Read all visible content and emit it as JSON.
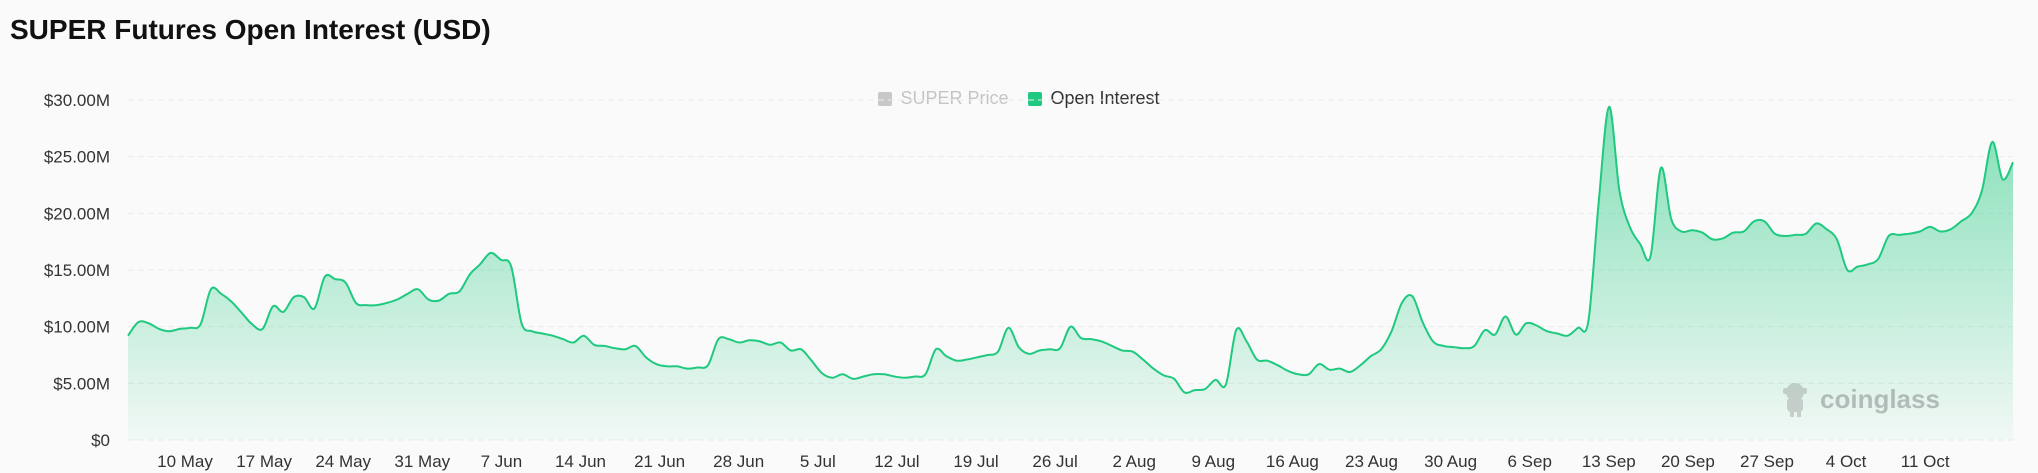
{
  "chart_data": {
    "type": "area",
    "title": "SUPER Futures Open Interest (USD)",
    "xlabel": "",
    "ylabel": "",
    "ylim": [
      0,
      30000000
    ],
    "y_ticks": [
      {
        "value": 0,
        "label": "$0"
      },
      {
        "value": 5000000,
        "label": "$5.00M"
      },
      {
        "value": 10000000,
        "label": "$10.00M"
      },
      {
        "value": 15000000,
        "label": "$15.00M"
      },
      {
        "value": 20000000,
        "label": "$20.00M"
      },
      {
        "value": 25000000,
        "label": "$25.00M"
      },
      {
        "value": 30000000,
        "label": "$30.00M"
      }
    ],
    "x_ticks": [
      "10 May",
      "17 May",
      "24 May",
      "31 May",
      "7 Jun",
      "14 Jun",
      "21 Jun",
      "28 Jun",
      "5 Jul",
      "12 Jul",
      "19 Jul",
      "26 Jul",
      "2 Aug",
      "9 Aug",
      "16 Aug",
      "23 Aug",
      "30 Aug",
      "6 Sep",
      "13 Sep",
      "20 Sep",
      "27 Sep",
      "4 Oct",
      "11 Oct"
    ],
    "grid": true,
    "legend_position": "top-center",
    "legend": [
      {
        "name": "SUPER Price",
        "color": "#c8c8c8",
        "active": false
      },
      {
        "name": "Open Interest",
        "color": "#1fc97f",
        "active": true
      }
    ],
    "series": [
      {
        "name": "Open Interest",
        "color": "#1fc97f",
        "values": [
          9.2,
          10.4,
          10.3,
          9.8,
          9.6,
          9.8,
          9.9,
          10.2,
          13.3,
          12.9,
          12.2,
          11.2,
          10.2,
          9.8,
          11.8,
          11.3,
          12.6,
          12.6,
          11.6,
          14.4,
          14.2,
          13.9,
          12.1,
          11.9,
          11.9,
          12.1,
          12.4,
          12.9,
          13.3,
          12.4,
          12.3,
          12.9,
          13.1,
          14.6,
          15.5,
          16.5,
          15.9,
          15.3,
          10.3,
          9.6,
          9.4,
          9.2,
          8.9,
          8.6,
          9.2,
          8.4,
          8.3,
          8.1,
          8.0,
          8.3,
          7.3,
          6.7,
          6.5,
          6.5,
          6.3,
          6.4,
          6.6,
          8.9,
          8.9,
          8.6,
          8.8,
          8.7,
          8.4,
          8.6,
          7.9,
          8.0,
          7.0,
          5.9,
          5.5,
          5.8,
          5.4,
          5.6,
          5.8,
          5.8,
          5.6,
          5.5,
          5.6,
          5.8,
          8.0,
          7.4,
          7.0,
          7.1,
          7.3,
          7.5,
          7.8,
          9.9,
          8.2,
          7.6,
          7.9,
          8.0,
          8.1,
          10.0,
          9.0,
          8.9,
          8.7,
          8.3,
          7.9,
          7.8,
          7.1,
          6.3,
          5.7,
          5.4,
          4.2,
          4.4,
          4.5,
          5.3,
          4.9,
          9.7,
          8.7,
          7.1,
          7.0,
          6.6,
          6.1,
          5.8,
          5.8,
          6.7,
          6.2,
          6.3,
          6.0,
          6.6,
          7.4,
          8.0,
          9.6,
          12.1,
          12.7,
          10.4,
          8.7,
          8.3,
          8.2,
          8.1,
          8.3,
          9.7,
          9.3,
          10.9,
          9.3,
          10.3,
          10.1,
          9.6,
          9.4,
          9.2,
          9.9,
          10.5,
          21.0,
          29.4,
          22.0,
          18.8,
          17.3,
          16.2,
          24.0,
          19.5,
          18.4,
          18.5,
          18.3,
          17.7,
          17.8,
          18.3,
          18.4,
          19.3,
          19.3,
          18.2,
          18.0,
          18.1,
          18.2,
          19.1,
          18.6,
          17.7,
          15.0,
          15.3,
          15.5,
          16.0,
          18.0,
          18.1,
          18.2,
          18.4,
          18.8,
          18.4,
          18.6,
          19.3,
          20.0,
          22.0,
          26.3,
          23.0,
          24.5
        ]
      }
    ]
  },
  "watermark": {
    "text": "coinglass"
  },
  "colors": {
    "accent": "#1fc97f",
    "grid": "#ebebeb",
    "background": "#fafafa"
  }
}
